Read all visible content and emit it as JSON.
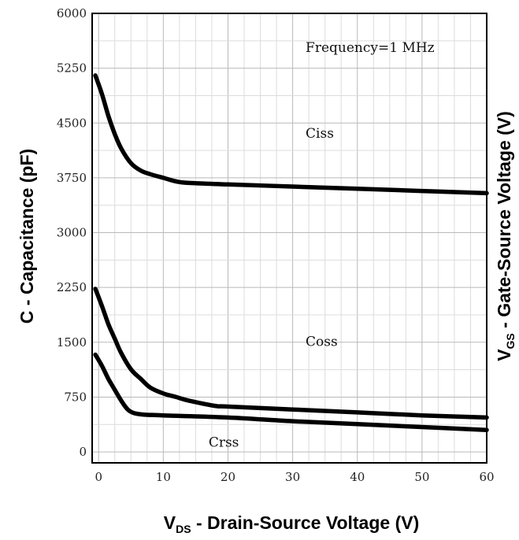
{
  "chart_data": {
    "type": "line",
    "xlabel": {
      "prefix": "V",
      "sub": "DS",
      "suffix": " - Drain-Source Voltage (V)"
    },
    "ylabel": "C - Capacitance (pF)",
    "y2label": {
      "prefix": "V",
      "sub": "GS",
      "suffix": " - Gate-Source Voltage (V)"
    },
    "xlim": [
      -1,
      60
    ],
    "ylim": [
      -150,
      6000
    ],
    "x_ticks": [
      0,
      10,
      20,
      30,
      40,
      50,
      60
    ],
    "x_tick_labels": [
      "0",
      "10",
      "20",
      "30",
      "40",
      "50",
      "60"
    ],
    "y_ticks": [
      0,
      750,
      1500,
      2250,
      3000,
      3750,
      4500,
      5250,
      6000
    ],
    "y_tick_labels": [
      "0",
      "750",
      "1500",
      "2250",
      "3000",
      "3750",
      "4500",
      "5250",
      "6000"
    ],
    "grid": true,
    "annotations": [
      "Frequency=1 MHz"
    ],
    "series": [
      {
        "name": "Ciss",
        "x": [
          -0.5,
          0.5,
          1.5,
          2.5,
          3.5,
          5,
          6.5,
          8,
          10,
          12,
          14,
          20,
          30,
          40,
          50,
          60
        ],
        "values": [
          5150,
          4900,
          4600,
          4350,
          4150,
          3950,
          3850,
          3800,
          3750,
          3700,
          3680,
          3660,
          3630,
          3600,
          3570,
          3540
        ]
      },
      {
        "name": "Coss",
        "x": [
          -0.5,
          0.5,
          1.5,
          2.5,
          3.5,
          5,
          6.5,
          8,
          10,
          12,
          14,
          18,
          20,
          30,
          40,
          50,
          60
        ],
        "values": [
          2230,
          2000,
          1750,
          1550,
          1350,
          1130,
          1000,
          880,
          800,
          750,
          700,
          630,
          620,
          580,
          540,
          500,
          470
        ]
      },
      {
        "name": "Crss",
        "x": [
          -0.5,
          0.5,
          1.5,
          2.5,
          3.5,
          4.5,
          5.5,
          7,
          10,
          20,
          30,
          40,
          50,
          60
        ],
        "values": [
          1330,
          1180,
          1000,
          850,
          700,
          580,
          530,
          510,
          500,
          470,
          420,
          380,
          340,
          300
        ]
      }
    ],
    "series_labels": [
      {
        "text": "Ciss",
        "x": 32,
        "y": 4300
      },
      {
        "text": "Coss",
        "x": 32,
        "y": 1450
      },
      {
        "text": "Crss",
        "x": 17,
        "y": 70
      }
    ],
    "annotation_positions": [
      {
        "text": "Frequency=1 MHz",
        "x": 32,
        "y": 5470
      }
    ]
  }
}
